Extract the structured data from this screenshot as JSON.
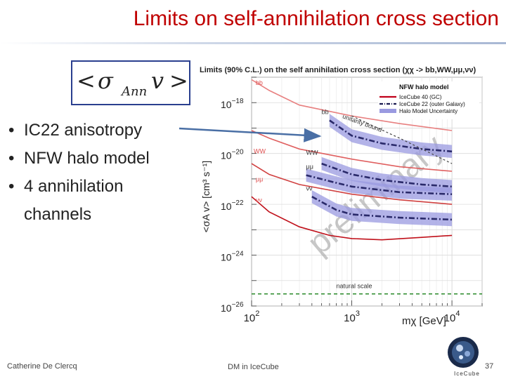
{
  "slide": {
    "title": "Limits on self-annihilation cross section",
    "formula": {
      "lt": "<",
      "sigma": "σ",
      "sub": "Ann",
      "v": "v",
      "gt": ">"
    },
    "bullets": [
      "IC22 anisotropy",
      "NFW halo model",
      "4 annihilation channels"
    ],
    "bullet_glyph": "•",
    "footer_author": "Catherine De Clercq",
    "footer_center": "DM in IceCube",
    "page_number": "37",
    "logo_text": "IceCube"
  },
  "chart_data": {
    "type": "line",
    "title": "Limits (90% C.L.) on the self annihilation cross section (χχ -> bb,WW,μμ,νν)",
    "xlabel": "mχ [GeV]",
    "ylabel": "<σA v> [cm³ s⁻¹]",
    "x_scale": "log",
    "y_scale": "log",
    "xlim": [
      100,
      20000
    ],
    "ylim": [
      1e-26,
      1e-17
    ],
    "x_ticks": [
      {
        "v": 100,
        "m": "10",
        "e": "2"
      },
      {
        "v": 1000,
        "m": "10",
        "e": "3"
      },
      {
        "v": 10000,
        "m": "10",
        "e": "4"
      }
    ],
    "y_ticks": [
      {
        "v": 1e-18,
        "m": "10",
        "e": "−18"
      },
      {
        "v": 1e-20,
        "m": "10",
        "e": "−20"
      },
      {
        "v": 1e-22,
        "m": "10",
        "e": "−22"
      },
      {
        "v": 1e-24,
        "m": "10",
        "e": "−24"
      },
      {
        "v": 1e-26,
        "m": "10",
        "e": "−26"
      }
    ],
    "legend_position": "top-right",
    "legend_title": "NFW halo model",
    "legend": [
      {
        "label": "IceCube 40 (GC)",
        "color": "#c0001a",
        "style": "solid"
      },
      {
        "label": "IceCube 22 (outer Galaxy)",
        "color": "#1a1a50",
        "style": "dashdot"
      },
      {
        "label": "Halo Model Uncertainty",
        "color": "#9a9ae0",
        "style": "band"
      }
    ],
    "series": [
      {
        "group": "ic40",
        "label": "bb",
        "color": "#e88080",
        "x": [
          100,
          150,
          300,
          1000,
          3000,
          10000
        ],
        "y": [
          8e-18,
          3e-18,
          8e-19,
          3e-19,
          1.5e-19,
          8e-20
        ]
      },
      {
        "group": "ic40",
        "label": "WW",
        "color": "#e06060",
        "x": [
          100,
          150,
          300,
          1000,
          3000,
          10000
        ],
        "y": [
          8e-20,
          4e-20,
          1.5e-20,
          6e-21,
          3e-21,
          2e-21
        ]
      },
      {
        "group": "ic40",
        "label": "μμ",
        "color": "#d04040",
        "x": [
          100,
          150,
          300,
          1000,
          3000,
          10000
        ],
        "y": [
          4e-21,
          1.5e-21,
          6e-22,
          2.5e-22,
          1.5e-22,
          1e-22
        ]
      },
      {
        "group": "ic40",
        "label": "νν",
        "color": "#c0101a",
        "x": [
          100,
          150,
          300,
          600,
          1000,
          2000,
          5000,
          10000
        ],
        "y": [
          2e-22,
          5e-23,
          1.3e-23,
          6e-24,
          4.5e-24,
          4e-24,
          5e-24,
          6e-24
        ]
      },
      {
        "group": "ic22",
        "label": "bb",
        "color": "#2a2a6a",
        "x": [
          600,
          1000,
          2000,
          5000,
          10000
        ],
        "y": [
          2e-19,
          5e-20,
          2.5e-20,
          1.5e-20,
          1.2e-20
        ]
      },
      {
        "group": "ic22",
        "label": "WW",
        "color": "#2a2a6a",
        "x": [
          500,
          1000,
          2000,
          5000,
          10000
        ],
        "y": [
          4e-21,
          1.5e-21,
          9e-22,
          6e-22,
          5e-22
        ]
      },
      {
        "group": "ic22",
        "label": "μμ",
        "color": "#2a2a6a",
        "x": [
          350,
          700,
          1000,
          3000,
          10000
        ],
        "y": [
          1.4e-21,
          7e-22,
          5e-22,
          3e-22,
          2.5e-22
        ]
      },
      {
        "group": "ic22",
        "label": "νν",
        "color": "#2a2a6a",
        "x": [
          400,
          700,
          1000,
          3000,
          10000
        ],
        "y": [
          2e-22,
          6e-23,
          4e-23,
          3e-23,
          2.5e-23
        ]
      },
      {
        "group": "unitarity",
        "label": "unitarity bound",
        "color": "#444444",
        "x": [
          1000,
          3000,
          10000
        ],
        "y": [
          3e-19,
          4e-20,
          4e-21
        ]
      },
      {
        "group": "natural",
        "label": "natural scale",
        "color": "#2a8a2a",
        "x": [
          100,
          20000
        ],
        "y": [
          3e-26,
          3e-26
        ]
      }
    ],
    "labels": [
      {
        "text": "bb",
        "color": "#e05050",
        "x": 110,
        "y": 5e-18
      },
      {
        "text": "WW",
        "color": "#e05050",
        "x": 105,
        "y": 1e-20
      },
      {
        "text": "μμ",
        "color": "#e05050",
        "x": 110,
        "y": 8e-22
      },
      {
        "text": "νν",
        "color": "#e05050",
        "x": 110,
        "y": 1.2e-22
      },
      {
        "text": "bb",
        "color": "#333333",
        "x": 500,
        "y": 3.5e-19
      },
      {
        "text": "WW",
        "color": "#333333",
        "x": 350,
        "y": 9e-21
      },
      {
        "text": "μμ",
        "color": "#333333",
        "x": 350,
        "y": 2.5e-21
      },
      {
        "text": "νν",
        "color": "#333333",
        "x": 350,
        "y": 3.5e-22
      },
      {
        "text": "unitarity bound",
        "color": "#333333",
        "x": 800,
        "y": 2.5e-19,
        "rotate": 20
      },
      {
        "text": "natural scale",
        "color": "#333333",
        "x": 700,
        "y": 5e-26
      }
    ],
    "watermark": "preliminary",
    "watermark_color": "#999999"
  }
}
